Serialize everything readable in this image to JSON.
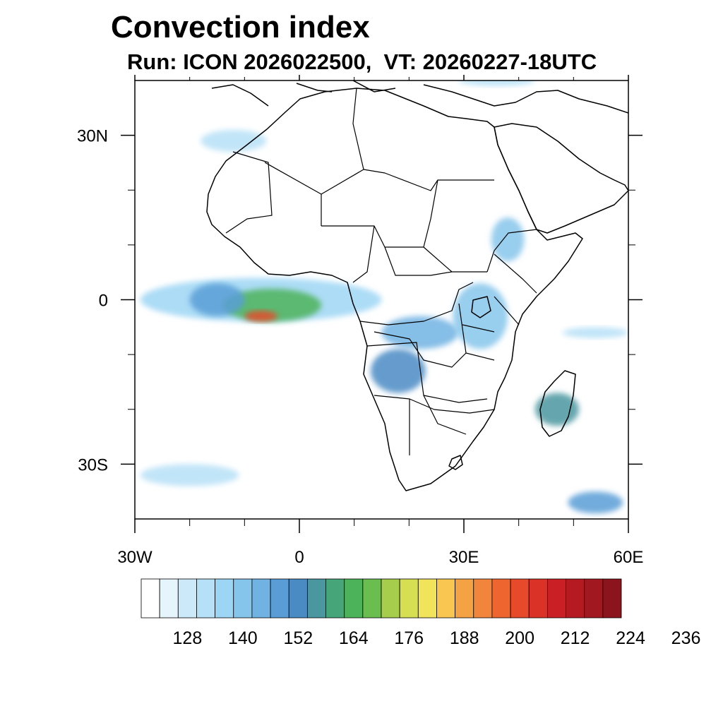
{
  "title": "Convection index",
  "subtitle": "Run: ICON 2026022500,  VT: 20260227-18UTC",
  "map": {
    "lon_range": [
      -30,
      60
    ],
    "lat_range": [
      -40,
      40
    ],
    "x_ticks": [
      {
        "lon": -30,
        "label": "30W"
      },
      {
        "lon": 0,
        "label": "0"
      },
      {
        "lon": 30,
        "label": "30E"
      },
      {
        "lon": 60,
        "label": "60E"
      }
    ],
    "y_ticks": [
      {
        "lat": 30,
        "label": "30N"
      },
      {
        "lat": 0,
        "label": "0"
      },
      {
        "lat": -30,
        "label": "30S"
      }
    ],
    "minor_lon": [
      -20,
      -10,
      10,
      20,
      40,
      50
    ],
    "minor_lat": [
      20,
      10,
      -10,
      -20
    ]
  },
  "colorbar": {
    "colors": [
      "#ffffff",
      "#e6f4fc",
      "#cbe9f9",
      "#b6e0f7",
      "#9dd6f4",
      "#86c5eb",
      "#70b3e3",
      "#5a9dd6",
      "#4a8bc4",
      "#4a97a0",
      "#47a57a",
      "#4cb35a",
      "#6abd4f",
      "#a6cd4c",
      "#d6de52",
      "#f1e35a",
      "#f8c651",
      "#f5a245",
      "#f2853c",
      "#ee6530",
      "#e64a2a",
      "#da3227",
      "#c91f25",
      "#b51a22",
      "#a21820",
      "#8c141c"
    ],
    "labels": [
      "128",
      "140",
      "152",
      "164",
      "176",
      "188",
      "200",
      "212",
      "224",
      "236"
    ],
    "label_box_index": [
      2,
      5,
      8,
      11,
      14,
      17,
      20,
      23,
      26,
      29
    ]
  },
  "features": {
    "convection_blobs": [
      {
        "lon": -7,
        "lat": 0,
        "rx": 22,
        "ry": 4,
        "level": 4
      },
      {
        "lon": -5,
        "lat": -1,
        "rx": 9,
        "ry": 3,
        "level": 11
      },
      {
        "lon": -7,
        "lat": -3,
        "rx": 3,
        "ry": 1,
        "level": 20
      },
      {
        "lon": -15,
        "lat": 0,
        "rx": 5,
        "ry": 3,
        "level": 7
      },
      {
        "lon": 22,
        "lat": -6,
        "rx": 7,
        "ry": 3,
        "level": 6
      },
      {
        "lon": 18,
        "lat": -13,
        "rx": 5,
        "ry": 4,
        "level": 8
      },
      {
        "lon": 33,
        "lat": -3,
        "rx": 5,
        "ry": 6,
        "level": 5
      },
      {
        "lon": 38,
        "lat": 11,
        "rx": 3,
        "ry": 4,
        "level": 5
      },
      {
        "lon": 47,
        "lat": -20,
        "rx": 4,
        "ry": 3,
        "level": 9
      },
      {
        "lon": 54,
        "lat": -6,
        "rx": 6,
        "ry": 1,
        "level": 3
      },
      {
        "lon": 54,
        "lat": -37,
        "rx": 5,
        "ry": 2,
        "level": 7
      },
      {
        "lon": -20,
        "lat": -32,
        "rx": 9,
        "ry": 2,
        "level": 3
      },
      {
        "lon": -12,
        "lat": 29,
        "rx": 6,
        "ry": 2,
        "level": 3
      },
      {
        "lon": 36,
        "lat": 40,
        "rx": 7,
        "ry": 1,
        "level": 3
      }
    ]
  }
}
